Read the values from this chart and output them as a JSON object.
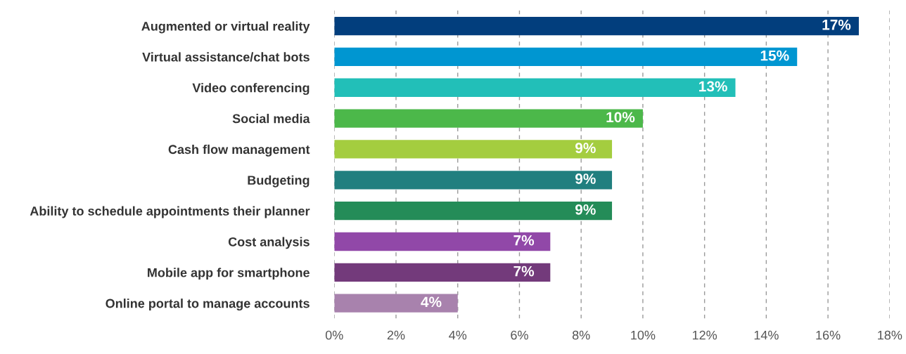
{
  "chart_data": {
    "type": "bar",
    "orientation": "horizontal",
    "categories": [
      "Augmented or virtual reality",
      "Virtual assistance/chat bots",
      "Video conferencing",
      "Social media",
      "Cash flow management",
      "Budgeting",
      "Ability to schedule appointments their planner",
      "Cost analysis",
      "Mobile app for smartphone",
      "Online portal to manage accounts"
    ],
    "values": [
      17,
      15,
      13,
      10,
      9,
      9,
      9,
      7,
      7,
      4
    ],
    "value_labels": [
      "17%",
      "15%",
      "13%",
      "10%",
      "9%",
      "9%",
      "9%",
      "7%",
      "7%",
      "4%"
    ],
    "colors": [
      "#023e7d",
      "#0096d1",
      "#22bfb8",
      "#4cb84a",
      "#a4cd3f",
      "#217f7f",
      "#248c58",
      "#9148a8",
      "#733a7b",
      "#a882ad"
    ],
    "xlim": [
      0,
      18
    ],
    "xticks": [
      {
        "value": 0,
        "label": "0%"
      },
      {
        "value": 2,
        "label": "2%"
      },
      {
        "value": 4,
        "label": "4%"
      },
      {
        "value": 6,
        "label": "6%"
      },
      {
        "value": 8,
        "label": "8%"
      },
      {
        "value": 10,
        "label": "10%"
      },
      {
        "value": 12,
        "label": "12%"
      },
      {
        "value": 14,
        "label": "14%"
      },
      {
        "value": 16,
        "label": "16%"
      },
      {
        "value": 18,
        "label": "18%"
      }
    ],
    "grid": "x"
  }
}
